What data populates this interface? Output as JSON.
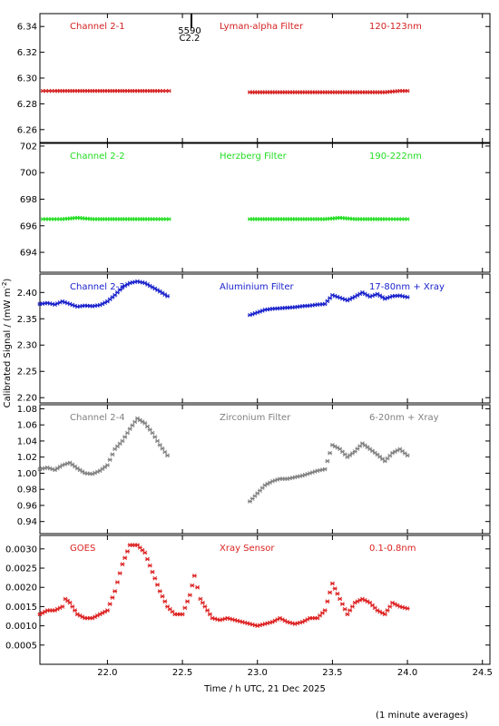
{
  "chart_data": [
    {
      "type": "scatter",
      "panel_title": "Channel 2-1",
      "filter_label": "Lyman-alpha Filter",
      "band_label": "120-123nm",
      "color": "#d42020",
      "xlim": [
        21.55,
        24.55
      ],
      "ylim": [
        6.25,
        6.35
      ],
      "yticks": [
        6.26,
        6.28,
        6.3,
        6.32,
        6.34
      ],
      "ytick_labels": [
        "6.26",
        "6.28",
        "6.30",
        "6.32",
        "6.34"
      ],
      "series": [
        {
          "points": [
            [
              21.57,
              6.29
            ],
            [
              21.65,
              6.29
            ],
            [
              21.75,
              6.29
            ],
            [
              21.85,
              6.29
            ],
            [
              21.95,
              6.29
            ],
            [
              22.05,
              6.29
            ],
            [
              22.15,
              6.29
            ],
            [
              22.25,
              6.29
            ],
            [
              22.35,
              6.29
            ],
            [
              22.41,
              6.29
            ],
            [
              22.95,
              6.289
            ],
            [
              23.05,
              6.289
            ],
            [
              23.15,
              6.289
            ],
            [
              23.25,
              6.289
            ],
            [
              23.35,
              6.289
            ],
            [
              23.45,
              6.289
            ],
            [
              23.55,
              6.289
            ],
            [
              23.65,
              6.289
            ],
            [
              23.75,
              6.289
            ],
            [
              23.85,
              6.289
            ],
            [
              23.95,
              6.29
            ],
            [
              24.0,
              6.29
            ]
          ]
        }
      ],
      "annotation": {
        "x": 22.56,
        "line1": "5590",
        "line2": "C2.2"
      }
    },
    {
      "type": "scatter",
      "panel_title": "Channel 2-2",
      "filter_label": "Herzberg Filter",
      "band_label": "190-222nm",
      "color": "#22dd22",
      "xlim": [
        21.55,
        24.55
      ],
      "ylim": [
        692.5,
        702.2
      ],
      "yticks": [
        694,
        696,
        698,
        700,
        702
      ],
      "ytick_labels": [
        "694",
        "696",
        "698",
        "700",
        "702"
      ],
      "series": [
        {
          "points": [
            [
              21.57,
              696.5
            ],
            [
              21.7,
              696.5
            ],
            [
              21.8,
              696.6
            ],
            [
              21.9,
              696.5
            ],
            [
              22.0,
              696.5
            ],
            [
              22.1,
              696.5
            ],
            [
              22.2,
              696.5
            ],
            [
              22.3,
              696.5
            ],
            [
              22.41,
              696.5
            ],
            [
              22.95,
              696.5
            ],
            [
              23.05,
              696.5
            ],
            [
              23.15,
              696.5
            ],
            [
              23.25,
              696.5
            ],
            [
              23.35,
              696.5
            ],
            [
              23.45,
              696.5
            ],
            [
              23.55,
              696.6
            ],
            [
              23.65,
              696.5
            ],
            [
              23.75,
              696.5
            ],
            [
              23.85,
              696.5
            ],
            [
              24.0,
              696.5
            ]
          ]
        }
      ]
    },
    {
      "type": "scatter",
      "panel_title": "Channel 2-3",
      "filter_label": "Aluminium Filter",
      "band_label": "17-80nm + Xray",
      "color": "#1a22cc",
      "xlim": [
        21.55,
        24.55
      ],
      "ylim": [
        2.19,
        2.435
      ],
      "yticks": [
        2.2,
        2.25,
        2.3,
        2.35,
        2.4
      ],
      "ytick_labels": [
        "2.20",
        "2.25",
        "2.30",
        "2.35",
        "2.40"
      ],
      "series": [
        {
          "points": [
            [
              21.55,
              2.378
            ],
            [
              21.6,
              2.38
            ],
            [
              21.65,
              2.377
            ],
            [
              21.7,
              2.383
            ],
            [
              21.75,
              2.378
            ],
            [
              21.8,
              2.373
            ],
            [
              21.85,
              2.375
            ],
            [
              21.9,
              2.374
            ],
            [
              21.95,
              2.376
            ],
            [
              22.0,
              2.383
            ],
            [
              22.05,
              2.395
            ],
            [
              22.1,
              2.41
            ],
            [
              22.15,
              2.418
            ],
            [
              22.2,
              2.421
            ],
            [
              22.25,
              2.418
            ],
            [
              22.3,
              2.41
            ],
            [
              22.35,
              2.402
            ],
            [
              22.4,
              2.393
            ],
            [
              22.95,
              2.357
            ],
            [
              23.0,
              2.362
            ],
            [
              23.05,
              2.367
            ],
            [
              23.1,
              2.369
            ],
            [
              23.15,
              2.37
            ],
            [
              23.2,
              2.371
            ],
            [
              23.25,
              2.372
            ],
            [
              23.3,
              2.374
            ],
            [
              23.35,
              2.375
            ],
            [
              23.4,
              2.377
            ],
            [
              23.45,
              2.378
            ],
            [
              23.5,
              2.395
            ],
            [
              23.55,
              2.39
            ],
            [
              23.6,
              2.385
            ],
            [
              23.65,
              2.392
            ],
            [
              23.7,
              2.4
            ],
            [
              23.75,
              2.392
            ],
            [
              23.8,
              2.397
            ],
            [
              23.85,
              2.388
            ],
            [
              23.9,
              2.393
            ],
            [
              23.95,
              2.394
            ],
            [
              24.0,
              2.391
            ]
          ]
        }
      ]
    },
    {
      "type": "scatter",
      "panel_title": "Channel 2-4",
      "filter_label": "Zirconium Filter",
      "band_label": "6-20nm + Xray",
      "color": "#808080",
      "xlim": [
        21.55,
        24.55
      ],
      "ylim": [
        0.925,
        1.085
      ],
      "yticks": [
        0.94,
        0.96,
        0.98,
        1.0,
        1.02,
        1.04,
        1.06,
        1.08
      ],
      "ytick_labels": [
        "0.94",
        "0.96",
        "0.98",
        "1.00",
        "1.02",
        "1.04",
        "1.06",
        "1.08"
      ],
      "series": [
        {
          "points": [
            [
              21.55,
              1.005
            ],
            [
              21.6,
              1.007
            ],
            [
              21.65,
              1.004
            ],
            [
              21.7,
              1.01
            ],
            [
              21.75,
              1.013
            ],
            [
              21.8,
              1.006
            ],
            [
              21.85,
              1.0
            ],
            [
              21.9,
              0.999
            ],
            [
              21.95,
              1.003
            ],
            [
              22.0,
              1.01
            ],
            [
              22.05,
              1.03
            ],
            [
              22.1,
              1.04
            ],
            [
              22.15,
              1.055
            ],
            [
              22.2,
              1.068
            ],
            [
              22.25,
              1.062
            ],
            [
              22.3,
              1.05
            ],
            [
              22.35,
              1.035
            ],
            [
              22.4,
              1.022
            ],
            [
              22.95,
              0.965
            ],
            [
              23.0,
              0.975
            ],
            [
              23.05,
              0.985
            ],
            [
              23.1,
              0.99
            ],
            [
              23.15,
              0.993
            ],
            [
              23.2,
              0.993
            ],
            [
              23.25,
              0.995
            ],
            [
              23.3,
              0.997
            ],
            [
              23.35,
              1.0
            ],
            [
              23.4,
              1.003
            ],
            [
              23.45,
              1.005
            ],
            [
              23.5,
              1.035
            ],
            [
              23.55,
              1.03
            ],
            [
              23.6,
              1.02
            ],
            [
              23.65,
              1.027
            ],
            [
              23.7,
              1.037
            ],
            [
              23.75,
              1.03
            ],
            [
              23.8,
              1.023
            ],
            [
              23.85,
              1.015
            ],
            [
              23.9,
              1.025
            ],
            [
              23.95,
              1.03
            ],
            [
              24.0,
              1.022
            ]
          ]
        }
      ]
    },
    {
      "type": "scatter",
      "panel_title": "GOES",
      "filter_label": "Xray Sensor",
      "band_label": "0.1-0.8nm",
      "color": "#dd2020",
      "xlim": [
        21.55,
        24.55
      ],
      "ylim": [
        0.0,
        0.00335
      ],
      "yticks": [
        0.0005,
        0.001,
        0.0015,
        0.002,
        0.0025,
        0.003
      ],
      "ytick_labels": [
        "0.0005",
        "0.0010",
        "0.0015",
        "0.0020",
        "0.0025",
        "0.0030"
      ],
      "series": [
        {
          "points": [
            [
              21.55,
              0.0013
            ],
            [
              21.6,
              0.0014
            ],
            [
              21.65,
              0.0014
            ],
            [
              21.7,
              0.0015
            ],
            [
              21.72,
              0.0017
            ],
            [
              21.75,
              0.0016
            ],
            [
              21.8,
              0.0013
            ],
            [
              21.85,
              0.0012
            ],
            [
              21.9,
              0.0012
            ],
            [
              21.95,
              0.0013
            ],
            [
              22.0,
              0.0014
            ],
            [
              22.05,
              0.0019
            ],
            [
              22.1,
              0.0026
            ],
            [
              22.15,
              0.0031
            ],
            [
              22.2,
              0.0031
            ],
            [
              22.25,
              0.0029
            ],
            [
              22.3,
              0.0024
            ],
            [
              22.35,
              0.0019
            ],
            [
              22.4,
              0.0015
            ],
            [
              22.45,
              0.0013
            ],
            [
              22.5,
              0.0013
            ],
            [
              22.55,
              0.0018
            ],
            [
              22.58,
              0.0023
            ],
            [
              22.62,
              0.0017
            ],
            [
              22.65,
              0.0015
            ],
            [
              22.7,
              0.0012
            ],
            [
              22.75,
              0.00115
            ],
            [
              22.8,
              0.0012
            ],
            [
              22.85,
              0.00115
            ],
            [
              22.9,
              0.0011
            ],
            [
              22.95,
              0.00105
            ],
            [
              23.0,
              0.001
            ],
            [
              23.05,
              0.00105
            ],
            [
              23.1,
              0.0011
            ],
            [
              23.15,
              0.0012
            ],
            [
              23.2,
              0.0011
            ],
            [
              23.25,
              0.00105
            ],
            [
              23.3,
              0.0011
            ],
            [
              23.35,
              0.0012
            ],
            [
              23.4,
              0.0012
            ],
            [
              23.45,
              0.0014
            ],
            [
              23.5,
              0.0021
            ],
            [
              23.55,
              0.0017
            ],
            [
              23.6,
              0.0013
            ],
            [
              23.65,
              0.0016
            ],
            [
              23.7,
              0.0017
            ],
            [
              23.75,
              0.0016
            ],
            [
              23.8,
              0.0014
            ],
            [
              23.85,
              0.0013
            ],
            [
              23.9,
              0.0016
            ],
            [
              23.95,
              0.0015
            ],
            [
              24.0,
              0.00145
            ]
          ]
        }
      ]
    }
  ],
  "xaxis": {
    "ticks": [
      22.0,
      22.5,
      23.0,
      23.5,
      24.0,
      24.5
    ],
    "tick_labels": [
      "22.0",
      "22.5",
      "23.0",
      "23.5",
      "24.0",
      "24.5"
    ],
    "label": "Time / h UTC, 21 Dec 2025"
  },
  "ylabel": "Calibrated Signal / (mW m",
  "ylabel_sup": "-2",
  "ylabel_close": ")",
  "footnote": "(1 minute averages)"
}
